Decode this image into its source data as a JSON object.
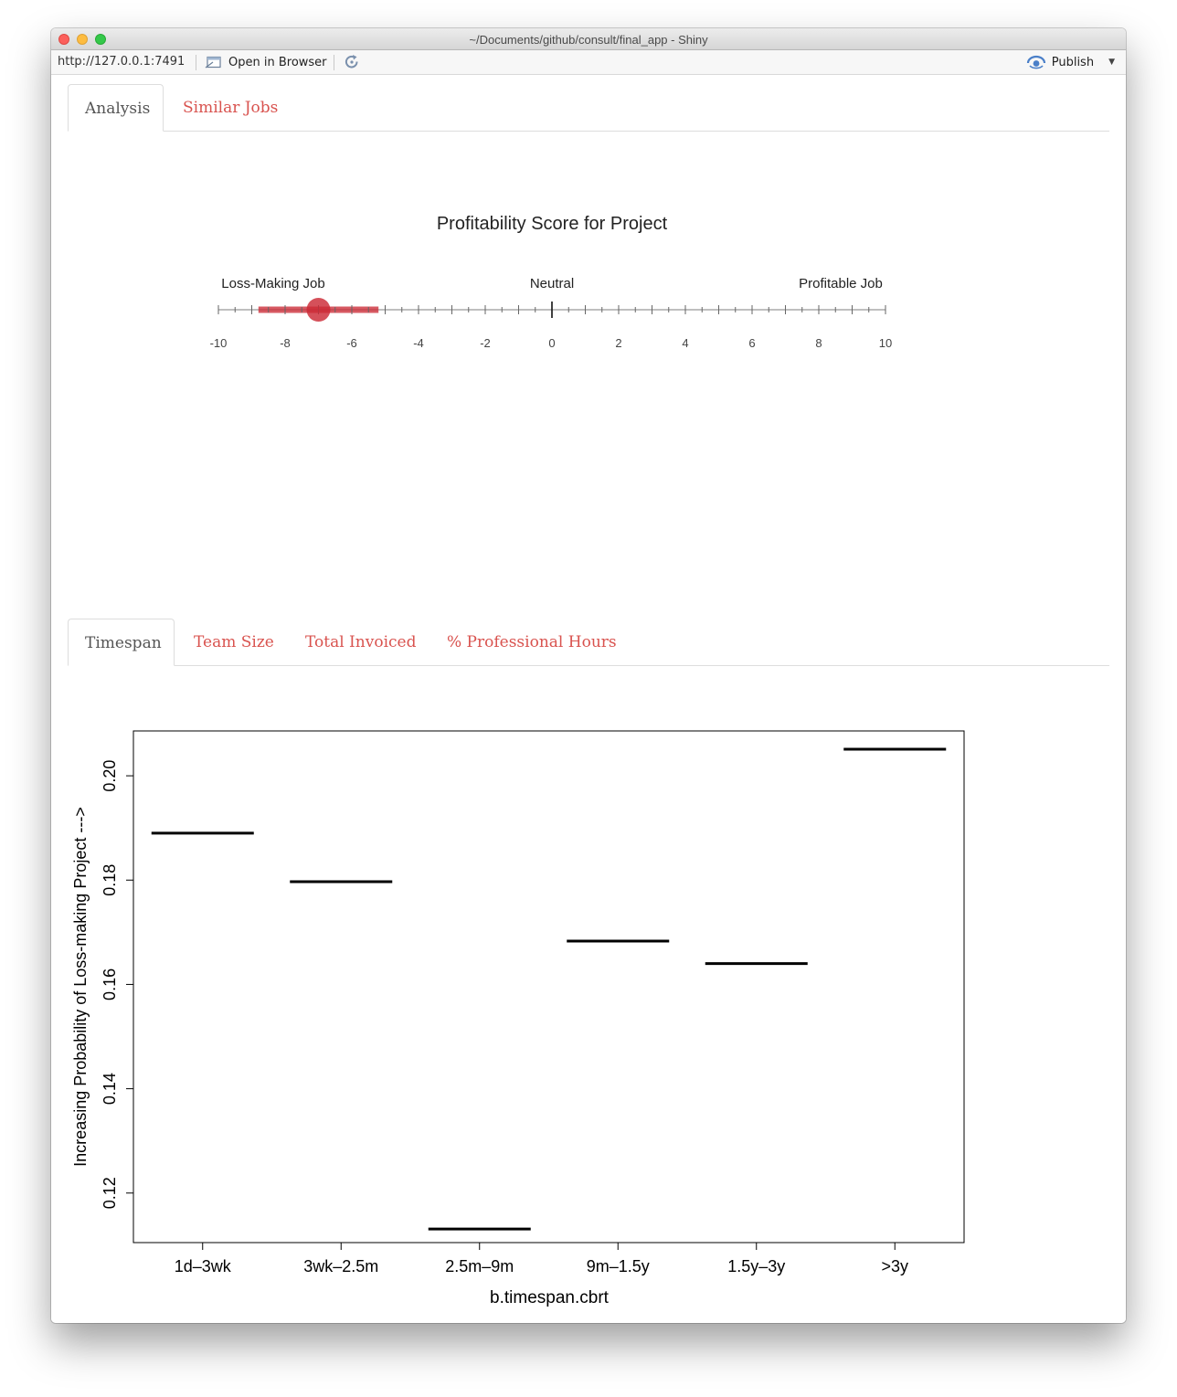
{
  "window": {
    "title": "~/Documents/github/consult/final_app - Shiny"
  },
  "toolbar": {
    "url": "http://127.0.0.1:7491",
    "open_in_browser_label": "Open in Browser",
    "publish_label": "Publish",
    "icons": [
      "browser-window-icon",
      "refresh-icon",
      "publish-icon",
      "dropdown-caret-icon"
    ]
  },
  "tabs_top": [
    {
      "label": "Analysis",
      "active": true
    },
    {
      "label": "Similar Jobs",
      "active": false
    }
  ],
  "tabs_bottom": [
    {
      "label": "Timespan",
      "active": true
    },
    {
      "label": "Team Size",
      "active": false
    },
    {
      "label": "Total Invoiced",
      "active": false
    },
    {
      "label": "% Professional Hours",
      "active": false
    }
  ],
  "colors": {
    "tab_link": "#d9534f",
    "tab_active": "#555555",
    "gauge_marker": "#cc2a36"
  },
  "gauge": {
    "title": "Profitability Score for Project",
    "left_label": "Loss-Making Job",
    "center_label": "Neutral",
    "right_label": "Profitable Job",
    "min": -10,
    "max": 10,
    "major_ticks": [
      -10,
      -8,
      -6,
      -4,
      -2,
      0,
      2,
      4,
      6,
      8,
      10
    ],
    "score": -7,
    "range": [
      -8.8,
      -5.2
    ]
  },
  "chart_data": {
    "type": "line",
    "title": "",
    "xlabel": "b.timespan.cbrt",
    "ylabel": "Increasing Probability of Loss-making Project --->",
    "categories": [
      "1d–3wk",
      "3wk–2.5m",
      "2.5m–9m",
      "9m–1.5y",
      "1.5y–3y",
      ">3y"
    ],
    "values": [
      0.189,
      0.1797,
      0.1131,
      0.1683,
      0.164,
      0.2051
    ],
    "ylim": [
      0.1105,
      0.2086
    ],
    "yticks": [
      0.12,
      0.14,
      0.16,
      0.18,
      0.2
    ],
    "ytick_labels": [
      "0.12",
      "0.14",
      "0.16",
      "0.18",
      "0.20"
    ],
    "grid": false
  }
}
